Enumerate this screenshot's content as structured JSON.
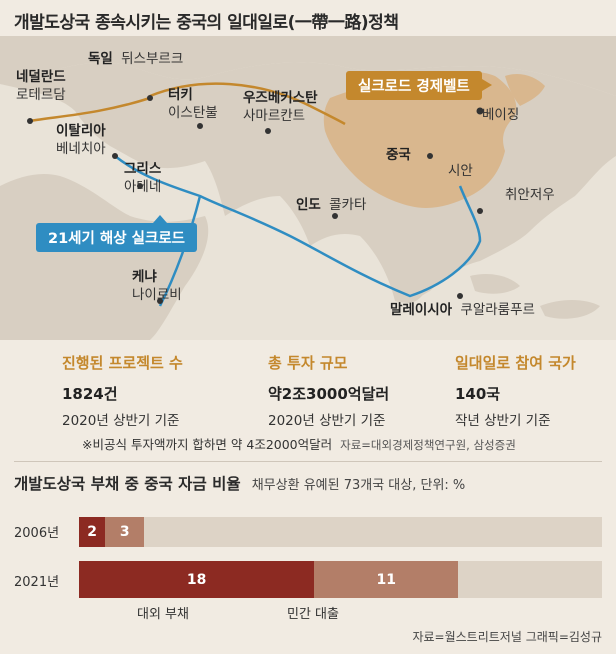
{
  "title": "개발도상국 종속시키는 중국의 일대일로(一帶一路)정책",
  "map": {
    "labels": [
      {
        "id": "germany",
        "country": "독일",
        "city": "뒤스부르크"
      },
      {
        "id": "netherlands",
        "country": "네덜란드",
        "city": "로테르담"
      },
      {
        "id": "turkey",
        "country": "터키",
        "city": "이스탄불"
      },
      {
        "id": "uzbekistan",
        "country": "우즈베키스탄",
        "city": "사마르칸트"
      },
      {
        "id": "italy",
        "country": "이탈리아",
        "city": "베네치아"
      },
      {
        "id": "greece",
        "country": "그리스",
        "city": "아테네"
      },
      {
        "id": "china",
        "country": "중국",
        "city": ""
      },
      {
        "id": "beijing",
        "country": "",
        "city": "베이징"
      },
      {
        "id": "xian",
        "country": "",
        "city": "시안"
      },
      {
        "id": "quanzhou",
        "country": "",
        "city": "취안저우"
      },
      {
        "id": "india",
        "country": "인도",
        "city": "콜카타"
      },
      {
        "id": "kenya",
        "country": "케냐",
        "city": "나이로비"
      },
      {
        "id": "malaysia",
        "country": "말레이시아",
        "city": "쿠알라룸푸르"
      }
    ],
    "silk_road_belt": "실크로드 경제벨트",
    "maritime_silk_road": "21세기 해상 실크로드"
  },
  "stats": [
    {
      "heading": "진행된 프로젝트 수",
      "value": "1824건",
      "sub": "2020년 상반기 기준"
    },
    {
      "heading": "총 투자 규모",
      "value": "약2조3000억달러",
      "sub": "2020년 상반기 기준"
    },
    {
      "heading": "일대일로 참여 국가",
      "value": "140국",
      "sub": "작년 상반기 기준"
    }
  ],
  "note": "※비공식 투자액까지 합하면 약 4조2000억달러",
  "source1": "자료=대외경제정책연구원, 삼성증권",
  "chart_data": {
    "type": "bar",
    "title": "개발도상국 부채 중 중국 자금 비율",
    "subtitle": "채무상환 유예된 73개국 대상, 단위: %",
    "categories": [
      "2006년",
      "2021년"
    ],
    "series": [
      {
        "name": "대외 부채",
        "values": [
          2,
          18
        ],
        "color": "#8c2a22"
      },
      {
        "name": "민간 대출",
        "values": [
          3,
          11
        ],
        "color": "#b37e68"
      }
    ],
    "stacked": true,
    "xlim": [
      0,
      100
    ]
  },
  "credits": "자료=월스트리트저널  그래픽=김성규"
}
